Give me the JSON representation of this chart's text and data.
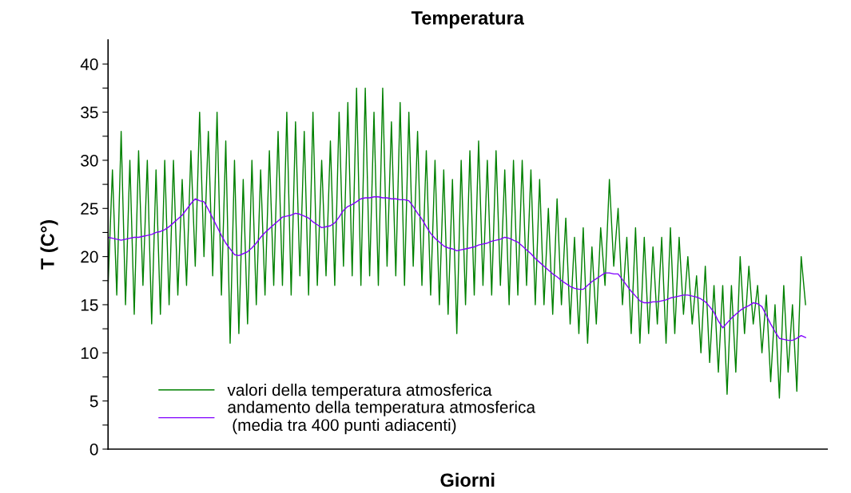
{
  "chart_data": {
    "type": "line",
    "title": "Temperatura",
    "xlabel": "Giorni",
    "ylabel": "T (C°)",
    "categories": [
      null,
      null,
      null,
      null,
      null,
      null,
      null,
      null,
      null,
      null,
      null,
      null,
      null,
      null,
      null,
      null,
      null,
      null,
      null,
      null,
      null,
      null,
      null,
      null,
      null,
      null,
      null,
      null,
      null,
      null,
      null,
      null,
      null,
      null,
      null,
      null,
      null,
      null,
      null,
      null,
      null,
      null,
      null,
      null,
      null,
      null,
      null,
      null,
      null,
      null,
      null,
      null,
      null,
      null,
      null,
      null,
      null,
      null,
      null,
      null,
      null,
      null,
      null,
      null,
      null,
      null,
      null,
      null,
      null,
      null,
      null,
      null,
      null,
      null,
      null,
      null,
      null,
      null,
      null,
      null,
      null,
      null,
      null,
      null,
      null,
      null,
      null,
      null,
      null,
      null,
      null,
      null,
      null,
      null,
      null,
      null,
      null,
      null,
      null,
      null,
      null,
      null,
      null,
      null,
      null,
      null,
      null,
      null,
      null,
      null,
      null,
      null,
      null,
      null,
      null,
      null,
      null,
      null,
      null,
      null,
      null,
      null,
      null,
      null,
      null,
      null,
      null,
      null,
      null,
      null,
      null,
      null,
      null,
      null,
      null,
      null,
      null,
      null,
      null,
      null,
      null,
      null,
      null,
      null,
      null,
      null,
      null,
      null,
      null,
      null,
      null,
      null,
      null,
      null,
      null,
      null,
      null,
      null,
      null,
      null,
      null
    ],
    "ylim": [
      0,
      42.5
    ],
    "yticks": [
      0,
      {
        "value": 2.5,
        "label": null
      },
      5,
      {
        "value": 7.5,
        "label": null
      },
      10,
      {
        "value": 12.5,
        "label": null
      },
      15,
      {
        "value": 17.5,
        "label": null
      },
      20,
      {
        "value": 22.5,
        "label": null
      },
      25,
      {
        "value": 27.5,
        "label": null
      },
      30,
      {
        "value": 32.5,
        "label": null
      },
      35,
      {
        "value": 37.5,
        "label": null
      },
      40
    ],
    "grid": false,
    "legend": "bottom left",
    "marker": "none",
    "line_style": "solid",
    "series": [
      {
        "name": "valori della temperatura atmosferica",
        "color": "#008000",
        "values": [
          17,
          29,
          16,
          33,
          15,
          30,
          14,
          31,
          17,
          30,
          13,
          29,
          14,
          30,
          15,
          30,
          16,
          28,
          17,
          31,
          19,
          35,
          20,
          33,
          18,
          35,
          16,
          32,
          11,
          30,
          12,
          28,
          13,
          30,
          15,
          29,
          16,
          31,
          17,
          33,
          17,
          35,
          16,
          34,
          18,
          33,
          16,
          35,
          17,
          30,
          18,
          32,
          17,
          35,
          19,
          36,
          18,
          37.5,
          17,
          37.5,
          18,
          35,
          17,
          37.5,
          19,
          34,
          18,
          36,
          17,
          35,
          19,
          33,
          17,
          31,
          16,
          30,
          15,
          29,
          14,
          28,
          12,
          30,
          15,
          31,
          16,
          32,
          17,
          30,
          16,
          31,
          17,
          29,
          15,
          30,
          16,
          30,
          17,
          29,
          15,
          28,
          15,
          25,
          14,
          26,
          15,
          24,
          13,
          22,
          12,
          23,
          11,
          21,
          13,
          23,
          17,
          28,
          19,
          25,
          15,
          22,
          12,
          23,
          11,
          22,
          12,
          21,
          13,
          22,
          11,
          23,
          12,
          22,
          14,
          20,
          13,
          18,
          10,
          19,
          9,
          17,
          8,
          17,
          5.7,
          17,
          8,
          20,
          12,
          19,
          13,
          17,
          10,
          16,
          7,
          15,
          5.3,
          17,
          8,
          15,
          6,
          20,
          15
        ]
      },
      {
        "name": "andamento della temperatura atmosferica\n (media tra 400 punti adiacenti)",
        "color": "#8000ff",
        "values": [
          22.0,
          21.9,
          21.8,
          21.7,
          21.8,
          21.9,
          22.0,
          22.0,
          22.1,
          22.2,
          22.3,
          22.5,
          22.6,
          22.8,
          23.1,
          23.5,
          23.9,
          24.3,
          24.9,
          25.5,
          26.0,
          25.8,
          25.7,
          24.9,
          24.0,
          23.1,
          22.2,
          21.4,
          20.8,
          20.2,
          20.1,
          20.3,
          20.5,
          20.9,
          21.4,
          22.0,
          22.5,
          22.9,
          23.3,
          23.7,
          24.1,
          24.2,
          24.3,
          24.5,
          24.4,
          24.2,
          24.0,
          23.6,
          23.3,
          23.0,
          23.1,
          23.2,
          23.5,
          24.1,
          24.8,
          25.2,
          25.4,
          25.7,
          26.0,
          26.1,
          26.1,
          26.2,
          26.2,
          26.1,
          26.1,
          26.0,
          26.0,
          25.9,
          25.9,
          25.8,
          25.2,
          24.5,
          23.9,
          23.1,
          22.4,
          21.9,
          21.5,
          21.1,
          20.9,
          20.8,
          20.6,
          20.7,
          20.8,
          20.9,
          21.0,
          21.2,
          21.3,
          21.4,
          21.6,
          21.7,
          21.8,
          22.0,
          21.9,
          21.7,
          21.5,
          21.1,
          20.7,
          20.3,
          19.8,
          19.4,
          19.0,
          18.6,
          18.2,
          17.9,
          17.5,
          17.2,
          16.9,
          16.7,
          16.6,
          16.6,
          17.0,
          17.4,
          17.7,
          18.0,
          18.3,
          18.3,
          18.2,
          18.2,
          17.6,
          17.0,
          16.4,
          15.9,
          15.4,
          15.2,
          15.2,
          15.3,
          15.3,
          15.4,
          15.5,
          15.7,
          15.8,
          15.9,
          16.0,
          16.0,
          15.9,
          15.8,
          15.6,
          15.3,
          14.8,
          14.2,
          13.3,
          12.6,
          13.1,
          13.6,
          14.0,
          14.4,
          14.7,
          14.9,
          15.2,
          15.1,
          14.8,
          13.9,
          13.0,
          12.2,
          11.5,
          11.4,
          11.3,
          11.3,
          11.5,
          11.8,
          11.6
        ]
      }
    ]
  }
}
